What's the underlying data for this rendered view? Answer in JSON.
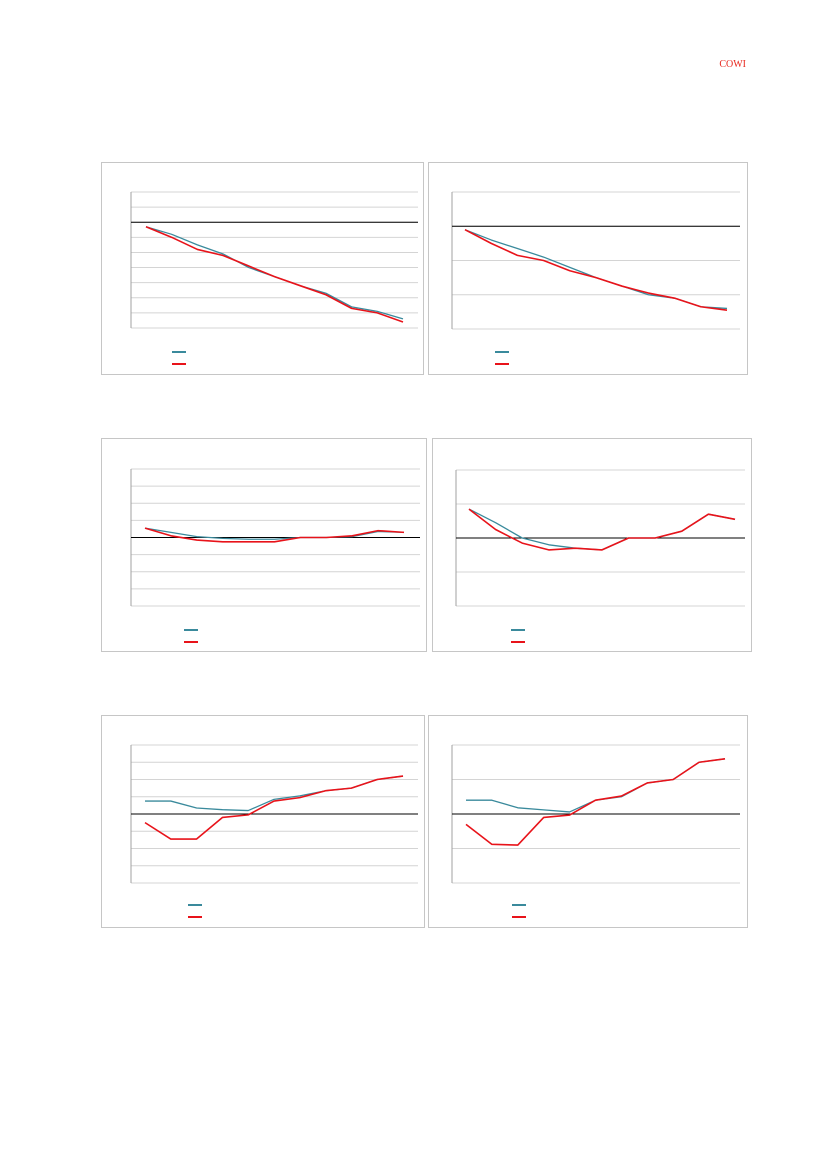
{
  "header": {
    "logo_text": "COWI"
  },
  "colors": {
    "series_a": "#3a8a9c",
    "series_b": "#e8131a",
    "grid": "#d4d4d4",
    "axis": "#000000"
  },
  "chart_data": [
    {
      "type": "line",
      "x": [
        1,
        2,
        3,
        4,
        5,
        6,
        7,
        8,
        9,
        10,
        11,
        12
      ],
      "ylim": [
        -7,
        2
      ],
      "baseline": 0,
      "grid_ticks": [
        -7,
        -6,
        -5,
        -4,
        -3,
        -2,
        -1,
        0,
        1,
        2
      ],
      "series": [
        {
          "color": "#3a8a9c",
          "values": [
            -0.3,
            -0.8,
            -1.5,
            -2.1,
            -3.0,
            -3.6,
            -4.2,
            -4.7,
            -5.6,
            -5.9,
            -6.4,
            null
          ]
        },
        {
          "color": "#e8131a",
          "values": [
            -0.3,
            -1.0,
            -1.8,
            -2.2,
            -2.9,
            -3.6,
            -4.2,
            -4.8,
            -5.7,
            -6.0,
            -6.6,
            null
          ]
        }
      ],
      "legend": "bottom-left"
    },
    {
      "type": "line",
      "x": [
        1,
        2,
        3,
        4,
        5,
        6,
        7,
        8,
        9,
        10,
        11,
        12
      ],
      "ylim": [
        -3,
        1
      ],
      "baseline": 0,
      "grid_ticks": [
        -3,
        -2,
        -1,
        0,
        1
      ],
      "series": [
        {
          "color": "#3a8a9c",
          "values": [
            -0.1,
            -0.4,
            -0.65,
            -0.9,
            -1.2,
            -1.5,
            -1.75,
            -2.0,
            -2.1,
            -2.35,
            -2.4,
            null
          ]
        },
        {
          "color": "#e8131a",
          "values": [
            -0.1,
            -0.5,
            -0.85,
            -1.0,
            -1.3,
            -1.5,
            -1.75,
            -1.95,
            -2.1,
            -2.35,
            -2.45,
            null
          ]
        }
      ],
      "legend": "bottom-left"
    },
    {
      "type": "line",
      "x": [
        1,
        2,
        3,
        4,
        5,
        6,
        7,
        8,
        9,
        10,
        11
      ],
      "ylim": [
        -4,
        4
      ],
      "baseline": 0,
      "grid_ticks": [
        -4,
        -3,
        -2,
        -1,
        0,
        1,
        2,
        3,
        4
      ],
      "series": [
        {
          "color": "#3a8a9c",
          "values": [
            0.55,
            0.3,
            0.05,
            -0.05,
            -0.1,
            -0.1,
            0.0,
            0.0,
            0.05,
            0.35,
            0.3
          ]
        },
        {
          "color": "#e8131a",
          "values": [
            0.55,
            0.1,
            -0.15,
            -0.25,
            -0.25,
            -0.25,
            0.0,
            0.0,
            0.1,
            0.4,
            0.3
          ]
        }
      ],
      "legend": "bottom-left"
    },
    {
      "type": "line",
      "x": [
        1,
        2,
        3,
        4,
        5,
        6,
        7,
        8,
        9,
        10,
        11
      ],
      "ylim": [
        -2,
        2
      ],
      "baseline": 0,
      "grid_ticks": [
        -2,
        -1,
        0,
        1,
        2
      ],
      "series": [
        {
          "color": "#3a8a9c",
          "values": [
            0.85,
            0.45,
            0.0,
            -0.2,
            -0.3,
            -0.35,
            0.0,
            0.0,
            0.2,
            0.7,
            0.55
          ]
        },
        {
          "color": "#e8131a",
          "values": [
            0.85,
            0.25,
            -0.15,
            -0.35,
            -0.3,
            -0.35,
            0.0,
            0.0,
            0.2,
            0.7,
            0.55
          ]
        }
      ],
      "legend": "bottom-left"
    },
    {
      "type": "line",
      "x": [
        1,
        2,
        3,
        4,
        5,
        6,
        7,
        8,
        9,
        10,
        11,
        12
      ],
      "ylim": [
        -4,
        4
      ],
      "baseline": 0,
      "grid_ticks": [
        -4,
        -3,
        -2,
        -1,
        0,
        1,
        2,
        3,
        4
      ],
      "series": [
        {
          "color": "#3a8a9c",
          "values": [
            0.75,
            0.75,
            0.35,
            0.25,
            0.2,
            0.85,
            1.05,
            1.35,
            1.5,
            2.0,
            2.2,
            null
          ]
        },
        {
          "color": "#e8131a",
          "values": [
            -0.5,
            -1.45,
            -1.45,
            -0.2,
            -0.05,
            0.75,
            0.95,
            1.35,
            1.5,
            2.0,
            2.2,
            null
          ]
        }
      ],
      "legend": "bottom-left"
    },
    {
      "type": "line",
      "x": [
        1,
        2,
        3,
        4,
        5,
        6,
        7,
        8,
        9,
        10,
        11,
        12
      ],
      "ylim": [
        -2,
        2
      ],
      "baseline": 0,
      "grid_ticks": [
        -2,
        -1,
        0,
        1,
        2
      ],
      "series": [
        {
          "color": "#3a8a9c",
          "values": [
            0.4,
            0.4,
            0.18,
            0.12,
            0.06,
            0.4,
            0.5,
            0.9,
            1.0,
            1.5,
            1.6,
            null
          ]
        },
        {
          "color": "#e8131a",
          "values": [
            -0.3,
            -0.88,
            -0.9,
            -0.1,
            -0.03,
            0.4,
            0.52,
            0.9,
            1.0,
            1.5,
            1.6,
            null
          ]
        }
      ],
      "legend": "bottom-left"
    }
  ]
}
